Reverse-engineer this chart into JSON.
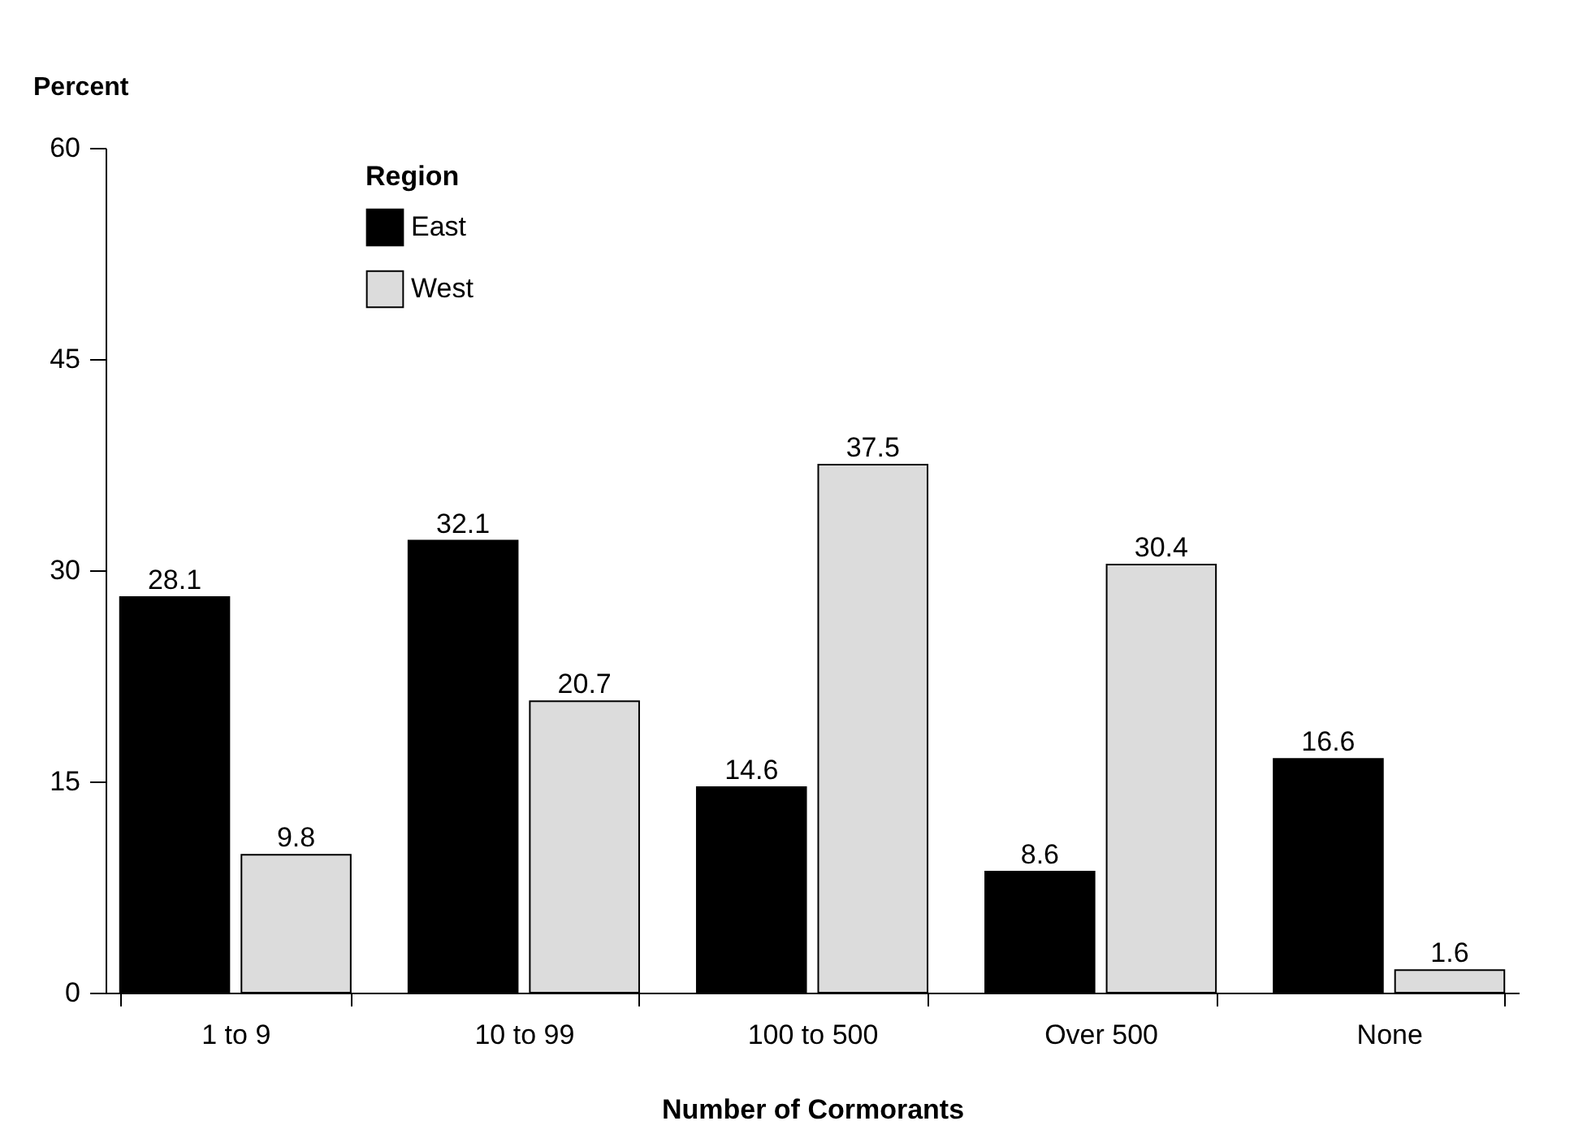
{
  "chart_data": {
    "type": "bar",
    "xlabel": "Number of Cormorants",
    "ylabel": "Percent",
    "legend_title": "Region",
    "categories": [
      "1 to 9",
      "10 to 99",
      "100 to 500",
      "Over 500",
      "None"
    ],
    "series": [
      {
        "name": "East",
        "color": "#000000",
        "values": [
          28.1,
          32.1,
          14.6,
          8.6,
          16.6
        ]
      },
      {
        "name": "West",
        "color": "#dcdcdc",
        "values": [
          9.8,
          20.7,
          37.5,
          30.4,
          1.6
        ]
      }
    ],
    "ylim": [
      0,
      60
    ],
    "yticks": [
      0,
      15,
      30,
      45,
      60
    ],
    "data_labels": true,
    "legend": "top left",
    "grid": false
  }
}
